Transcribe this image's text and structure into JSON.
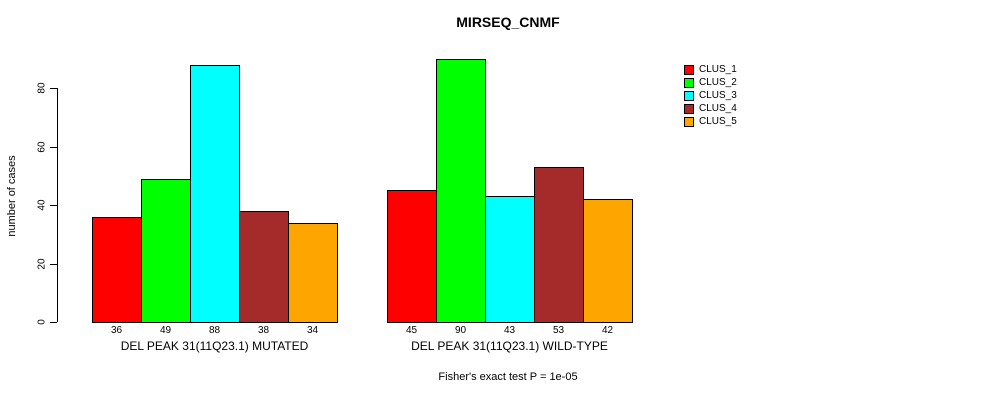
{
  "figure": {
    "title": "MIRSEQ_CNMF",
    "y_axis_title": "number of cases",
    "footer_note": "Fisher's exact test P = 1e-05"
  },
  "legend": {
    "items": [
      {
        "label": "CLUS_1",
        "color": "#FF0000"
      },
      {
        "label": "CLUS_2",
        "color": "#00FF00"
      },
      {
        "label": "CLUS_3",
        "color": "#00FFFF"
      },
      {
        "label": "CLUS_4",
        "color": "#A52A2A"
      },
      {
        "label": "CLUS_5",
        "color": "#FFA500"
      }
    ]
  },
  "chart_data": {
    "type": "bar",
    "title": "MIRSEQ_CNMF",
    "ylabel": "number of cases",
    "xlabel": "",
    "ylim": [
      0,
      90
    ],
    "yticks": [
      0,
      20,
      40,
      60,
      80
    ],
    "grid": false,
    "legend_position": "right",
    "series": [
      "CLUS_1",
      "CLUS_2",
      "CLUS_3",
      "CLUS_4",
      "CLUS_5"
    ],
    "series_colors": [
      "#FF0000",
      "#00FF00",
      "#00FFFF",
      "#A52A2A",
      "#FFA500"
    ],
    "groups": [
      {
        "label": "DEL PEAK 31(11Q23.1) MUTATED",
        "values": [
          36,
          49,
          88,
          38,
          34
        ]
      },
      {
        "label": "DEL PEAK 31(11Q23.1) WILD-TYPE",
        "values": [
          45,
          90,
          43,
          53,
          42
        ]
      }
    ],
    "bar_value_labels_shown": true,
    "annotation": "Fisher's exact test P = 1e-05"
  }
}
